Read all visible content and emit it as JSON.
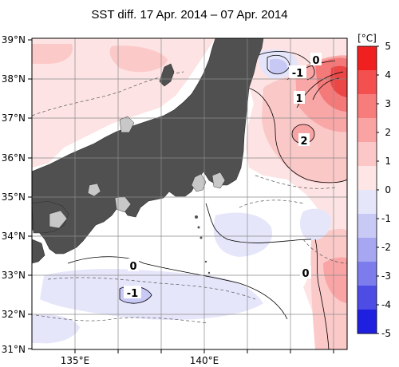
{
  "title": "SST diff. 17 Apr. 2014 – 07 Apr. 2014",
  "map": {
    "lat_range": [
      31,
      39
    ],
    "lon_range": [
      133.5,
      144.5
    ],
    "lat_ticks": [
      "39°N",
      "38°N",
      "37°N",
      "36°N",
      "35°N",
      "34°N",
      "33°N",
      "32°N",
      "31°N"
    ],
    "lon_ticks": [
      "135°E",
      "140°E"
    ],
    "land_color": "#505050",
    "grid": true
  },
  "contour_labels": [
    "0",
    "-1",
    "1",
    "2",
    "0",
    "-1",
    "0"
  ],
  "colorbar": {
    "unit": "[°C]",
    "ticks": [
      "5",
      "4",
      "3",
      "2",
      "1",
      "0",
      "-1",
      "-2",
      "-3",
      "-4",
      "-5"
    ],
    "colors": [
      "#f02020",
      "#f45050",
      "#f77c7c",
      "#faa3a3",
      "#fcc7c7",
      "#fee6e6",
      "#e6e6fb",
      "#c9c9f6",
      "#a6a6f1",
      "#7c7cec",
      "#4d4de6",
      "#1f1fe0"
    ]
  }
}
